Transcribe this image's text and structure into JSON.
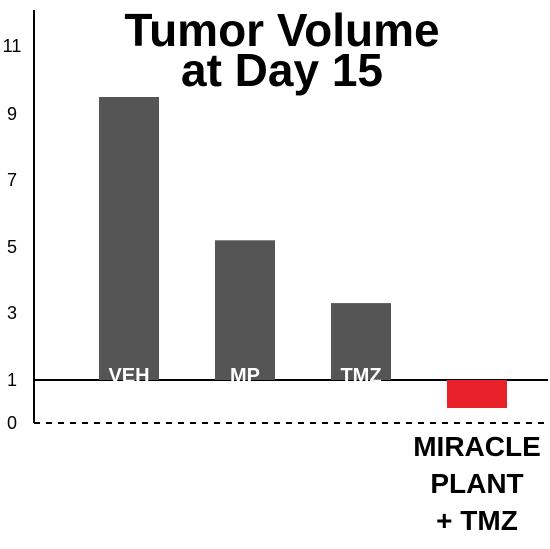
{
  "chart_data": {
    "type": "bar",
    "title_lines": [
      "Tumor Volume",
      "at Day 15"
    ],
    "categories": [
      "VEH",
      "MP",
      "TMZ",
      "MIRACLE PLANT + TMZ"
    ],
    "category_label_lines": [
      [
        "VEH"
      ],
      [
        "MP"
      ],
      [
        "TMZ"
      ],
      [
        "MIRACLE",
        "PLANT",
        "+ TMZ"
      ]
    ],
    "values": [
      9.5,
      5.2,
      3.3,
      0.4
    ],
    "baseline": 1,
    "ylim": [
      0,
      11
    ],
    "yticks": [
      0,
      1,
      3,
      5,
      7,
      9,
      11
    ],
    "xlabel": "",
    "ylabel": "",
    "grid": false,
    "legend": "none",
    "colors": {
      "bar": "#555555",
      "highlight": "#e8202a",
      "axis": "#000000",
      "bar_label": "#ffffff"
    }
  }
}
